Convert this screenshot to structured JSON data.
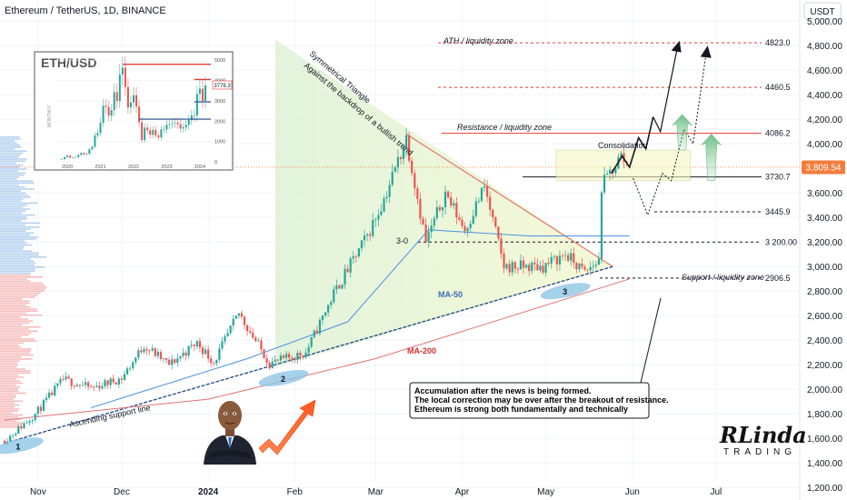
{
  "header": {
    "title": "Ethereum / TetherUS, 1D, BINANCE",
    "currency_button": "USDT"
  },
  "chart_data": {
    "type": "candlestick",
    "ylim": [
      1150,
      5150
    ],
    "y_ticks": [
      "5,000.00",
      "4,800.00",
      "4,600.00",
      "4,400.00",
      "4,200.00",
      "4,000.00",
      "3,600.00",
      "3,400.00",
      "3,200.00",
      "3,000.00",
      "2,800.00",
      "2,600.00",
      "2,400.00",
      "2,200.00",
      "2,000.00",
      "1,800.00",
      "1,600.00",
      "1,400.00",
      "1,200.00"
    ],
    "x_ticks": [
      "Nov",
      "Dec",
      "2024",
      "Feb",
      "Mar",
      "Apr",
      "May",
      "Jun",
      "Jul"
    ],
    "current_price": {
      "label": "3,809.54",
      "value": 3809.54
    },
    "levels": [
      {
        "label": "4823.0",
        "value": 4823.0,
        "color": "#e53935",
        "style": "dashed"
      },
      {
        "label": "4460.5",
        "value": 4460.5,
        "color": "#e53935",
        "style": "dashed"
      },
      {
        "label": "4086.2",
        "value": 4086.2,
        "color": "#e53935",
        "style": "solid"
      },
      {
        "label": "3730.7",
        "value": 3730.7,
        "color": "#131722",
        "style": "solid"
      },
      {
        "label": "3445.9",
        "value": 3445.9,
        "color": "#131722",
        "style": "dashed"
      },
      {
        "label": "3 200.00",
        "value": 3200.0,
        "color": "#131722",
        "style": "dashed"
      },
      {
        "label": "2906.5",
        "value": 2906.5,
        "color": "#131722",
        "style": "dashed"
      }
    ],
    "anchors": [
      {
        "date": "2023-10-20",
        "close": 1580
      },
      {
        "date": "2023-10-31",
        "close": 1800
      },
      {
        "date": "2023-11-10",
        "close": 2080
      },
      {
        "date": "2023-11-20",
        "close": 2010
      },
      {
        "date": "2023-12-01",
        "close": 2090
      },
      {
        "date": "2023-12-09",
        "close": 2360
      },
      {
        "date": "2023-12-18",
        "close": 2200
      },
      {
        "date": "2023-12-28",
        "close": 2380
      },
      {
        "date": "2024-01-03",
        "close": 2220
      },
      {
        "date": "2024-01-12",
        "close": 2620
      },
      {
        "date": "2024-01-23",
        "close": 2210
      },
      {
        "date": "2024-02-05",
        "close": 2300
      },
      {
        "date": "2024-02-15",
        "close": 2780
      },
      {
        "date": "2024-02-27",
        "close": 3250
      },
      {
        "date": "2024-03-04",
        "close": 3550
      },
      {
        "date": "2024-03-12",
        "close": 4050
      },
      {
        "date": "2024-03-19",
        "close": 3200
      },
      {
        "date": "2024-03-26",
        "close": 3600
      },
      {
        "date": "2024-04-02",
        "close": 3300
      },
      {
        "date": "2024-04-09",
        "close": 3650
      },
      {
        "date": "2024-04-16",
        "close": 3000
      },
      {
        "date": "2024-04-30",
        "close": 3000
      },
      {
        "date": "2024-05-08",
        "close": 3100
      },
      {
        "date": "2024-05-15",
        "close": 2950
      },
      {
        "date": "2024-05-20",
        "close": 3050
      },
      {
        "date": "2024-05-21",
        "close": 3650
      },
      {
        "date": "2024-05-25",
        "close": 3800
      },
      {
        "date": "2024-05-28",
        "close": 3900
      },
      {
        "date": "2024-05-31",
        "close": 3810
      }
    ],
    "ma50": [
      {
        "date": "2023-11-20",
        "value": 1850
      },
      {
        "date": "2024-01-15",
        "value": 2250
      },
      {
        "date": "2024-02-20",
        "value": 2550
      },
      {
        "date": "2024-03-20",
        "value": 3300
      },
      {
        "date": "2024-04-25",
        "value": 3250
      },
      {
        "date": "2024-05-31",
        "value": 3250
      }
    ],
    "ma200": [
      {
        "date": "2023-10-20",
        "value": 1750
      },
      {
        "date": "2024-01-01",
        "value": 1920
      },
      {
        "date": "2024-03-01",
        "value": 2250
      },
      {
        "date": "2024-05-31",
        "value": 2900
      }
    ],
    "annotations": {
      "ath": "ATH / liquidity zone",
      "resistance": "Resistance / liquidity zone",
      "consolidation": "Consolidation",
      "support": "Support / liquidity zone",
      "triangle1": "Symmetrical Triangle",
      "triangle2": "Against the backdrop of a bullish trend",
      "ma50": "MA-50",
      "ma200": "MA-200",
      "ascending": "Ascending support line",
      "touch1": "1",
      "touch2": "2",
      "touch3": "3",
      "wave": "3-0"
    },
    "note": [
      "Accumulation after the news is being formed.",
      "The local correction may be over after the breakout of resistance.",
      "Ethereum is strong both fundamentally and technically"
    ],
    "inset": {
      "title": "ETH/USD",
      "side_label": "MONTHLY",
      "price_label": "3776.3",
      "y_ticks": [
        "5000",
        "4000",
        "3000",
        "2000",
        "1000",
        "0"
      ],
      "x_ticks": [
        "2020",
        "2021",
        "2022",
        "2023",
        "2024"
      ],
      "ylim": [
        0,
        5100
      ],
      "monthly_closes": [
        130,
        230,
        300,
        200,
        220,
        230,
        340,
        430,
        360,
        390,
        620,
        740,
        1300,
        1420,
        1920,
        2760,
        2700,
        2270,
        2540,
        3430,
        2990,
        4290,
        4630,
        3680,
        2680,
        2920,
        3280,
        2720,
        1940,
        1070,
        1680,
        1550,
        1330,
        1570,
        1300,
        1200,
        1590,
        1600,
        1820,
        1860,
        1900,
        1930,
        1850,
        1640,
        1700,
        1820,
        2060,
        2280,
        2280,
        3340,
        3600,
        3000,
        3760
      ]
    },
    "logo": {
      "line1": "RLinda",
      "line2": "TRADING"
    }
  }
}
